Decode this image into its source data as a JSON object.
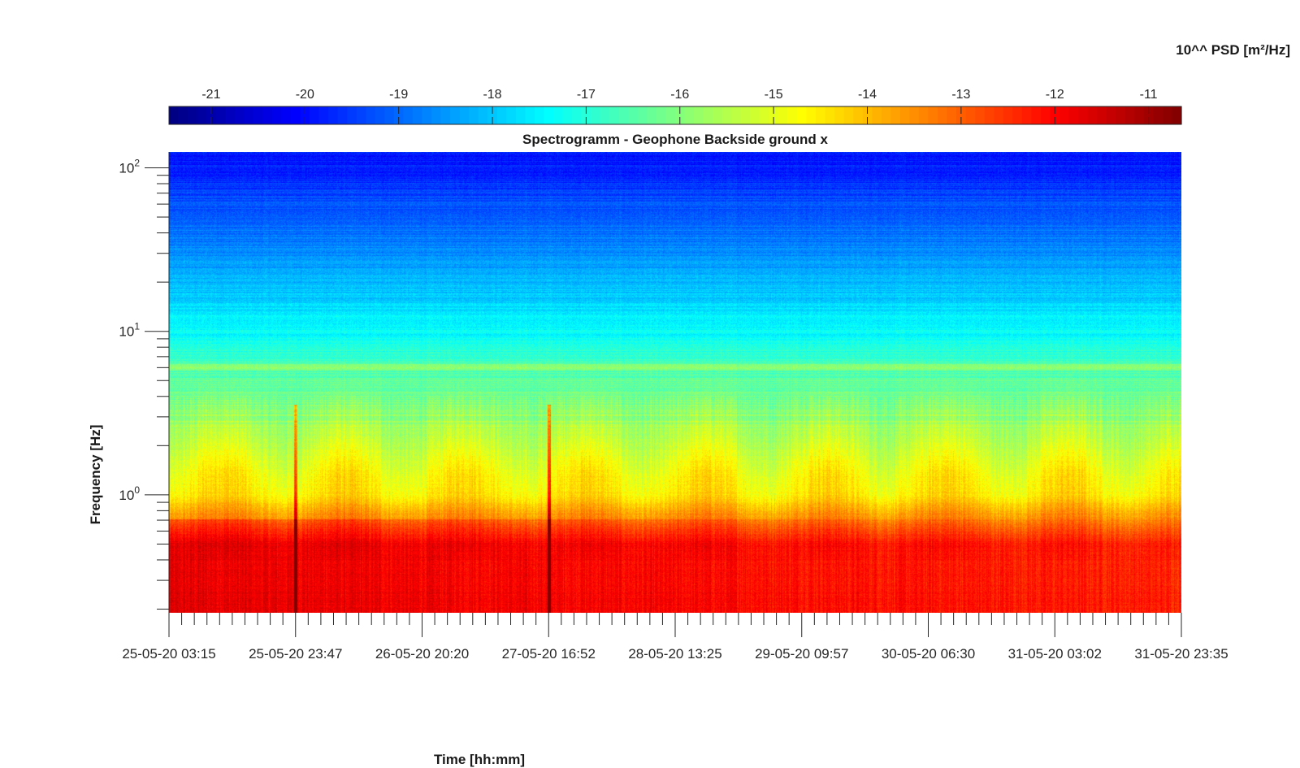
{
  "chart_data": {
    "type": "heatmap",
    "title": "Spectrogramm - Geophone Backside ground x",
    "xlabel": "Time [hh:mm]",
    "ylabel": "Frequency [Hz]",
    "yscale": "log",
    "ylim": [
      0.19,
      125
    ],
    "y_ticks": [
      {
        "value": 1,
        "base": "10",
        "exp": "0"
      },
      {
        "value": 10,
        "base": "10",
        "exp": "1"
      },
      {
        "value": 100,
        "base": "10",
        "exp": "2"
      }
    ],
    "x_ticks": [
      "25-05-20 03:15",
      "25-05-20 23:47",
      "26-05-20 20:20",
      "27-05-20 16:52",
      "28-05-20 13:25",
      "29-05-20 09:57",
      "30-05-20 06:30",
      "31-05-20 03:02",
      "31-05-20 23:35"
    ],
    "colorbar": {
      "label": "10^^ PSD [m²/Hz]",
      "colormap": "jet",
      "range": [
        -21.45,
        -10.65
      ],
      "ticks": [
        -21,
        -20,
        -19,
        -18,
        -17,
        -16,
        -15,
        -14,
        -13,
        -12,
        -11
      ]
    },
    "psd_profile_log10": [
      {
        "freq": 0.19,
        "value": -12.3
      },
      {
        "freq": 0.5,
        "value": -12.4
      },
      {
        "freq": 0.7,
        "value": -13.6
      },
      {
        "freq": 1.0,
        "value": -14.8
      },
      {
        "freq": 2.0,
        "value": -15.6
      },
      {
        "freq": 6.0,
        "value": -16.6
      },
      {
        "freq": 10.0,
        "value": -17.4
      },
      {
        "freq": 30.0,
        "value": -18.6
      },
      {
        "freq": 100.0,
        "value": -19.8
      }
    ],
    "events": [
      {
        "time": "25-05-20 23:47",
        "note": "vertical red streak"
      },
      {
        "time": "27-05-20 16:52",
        "note": "vertical red streak"
      }
    ]
  }
}
